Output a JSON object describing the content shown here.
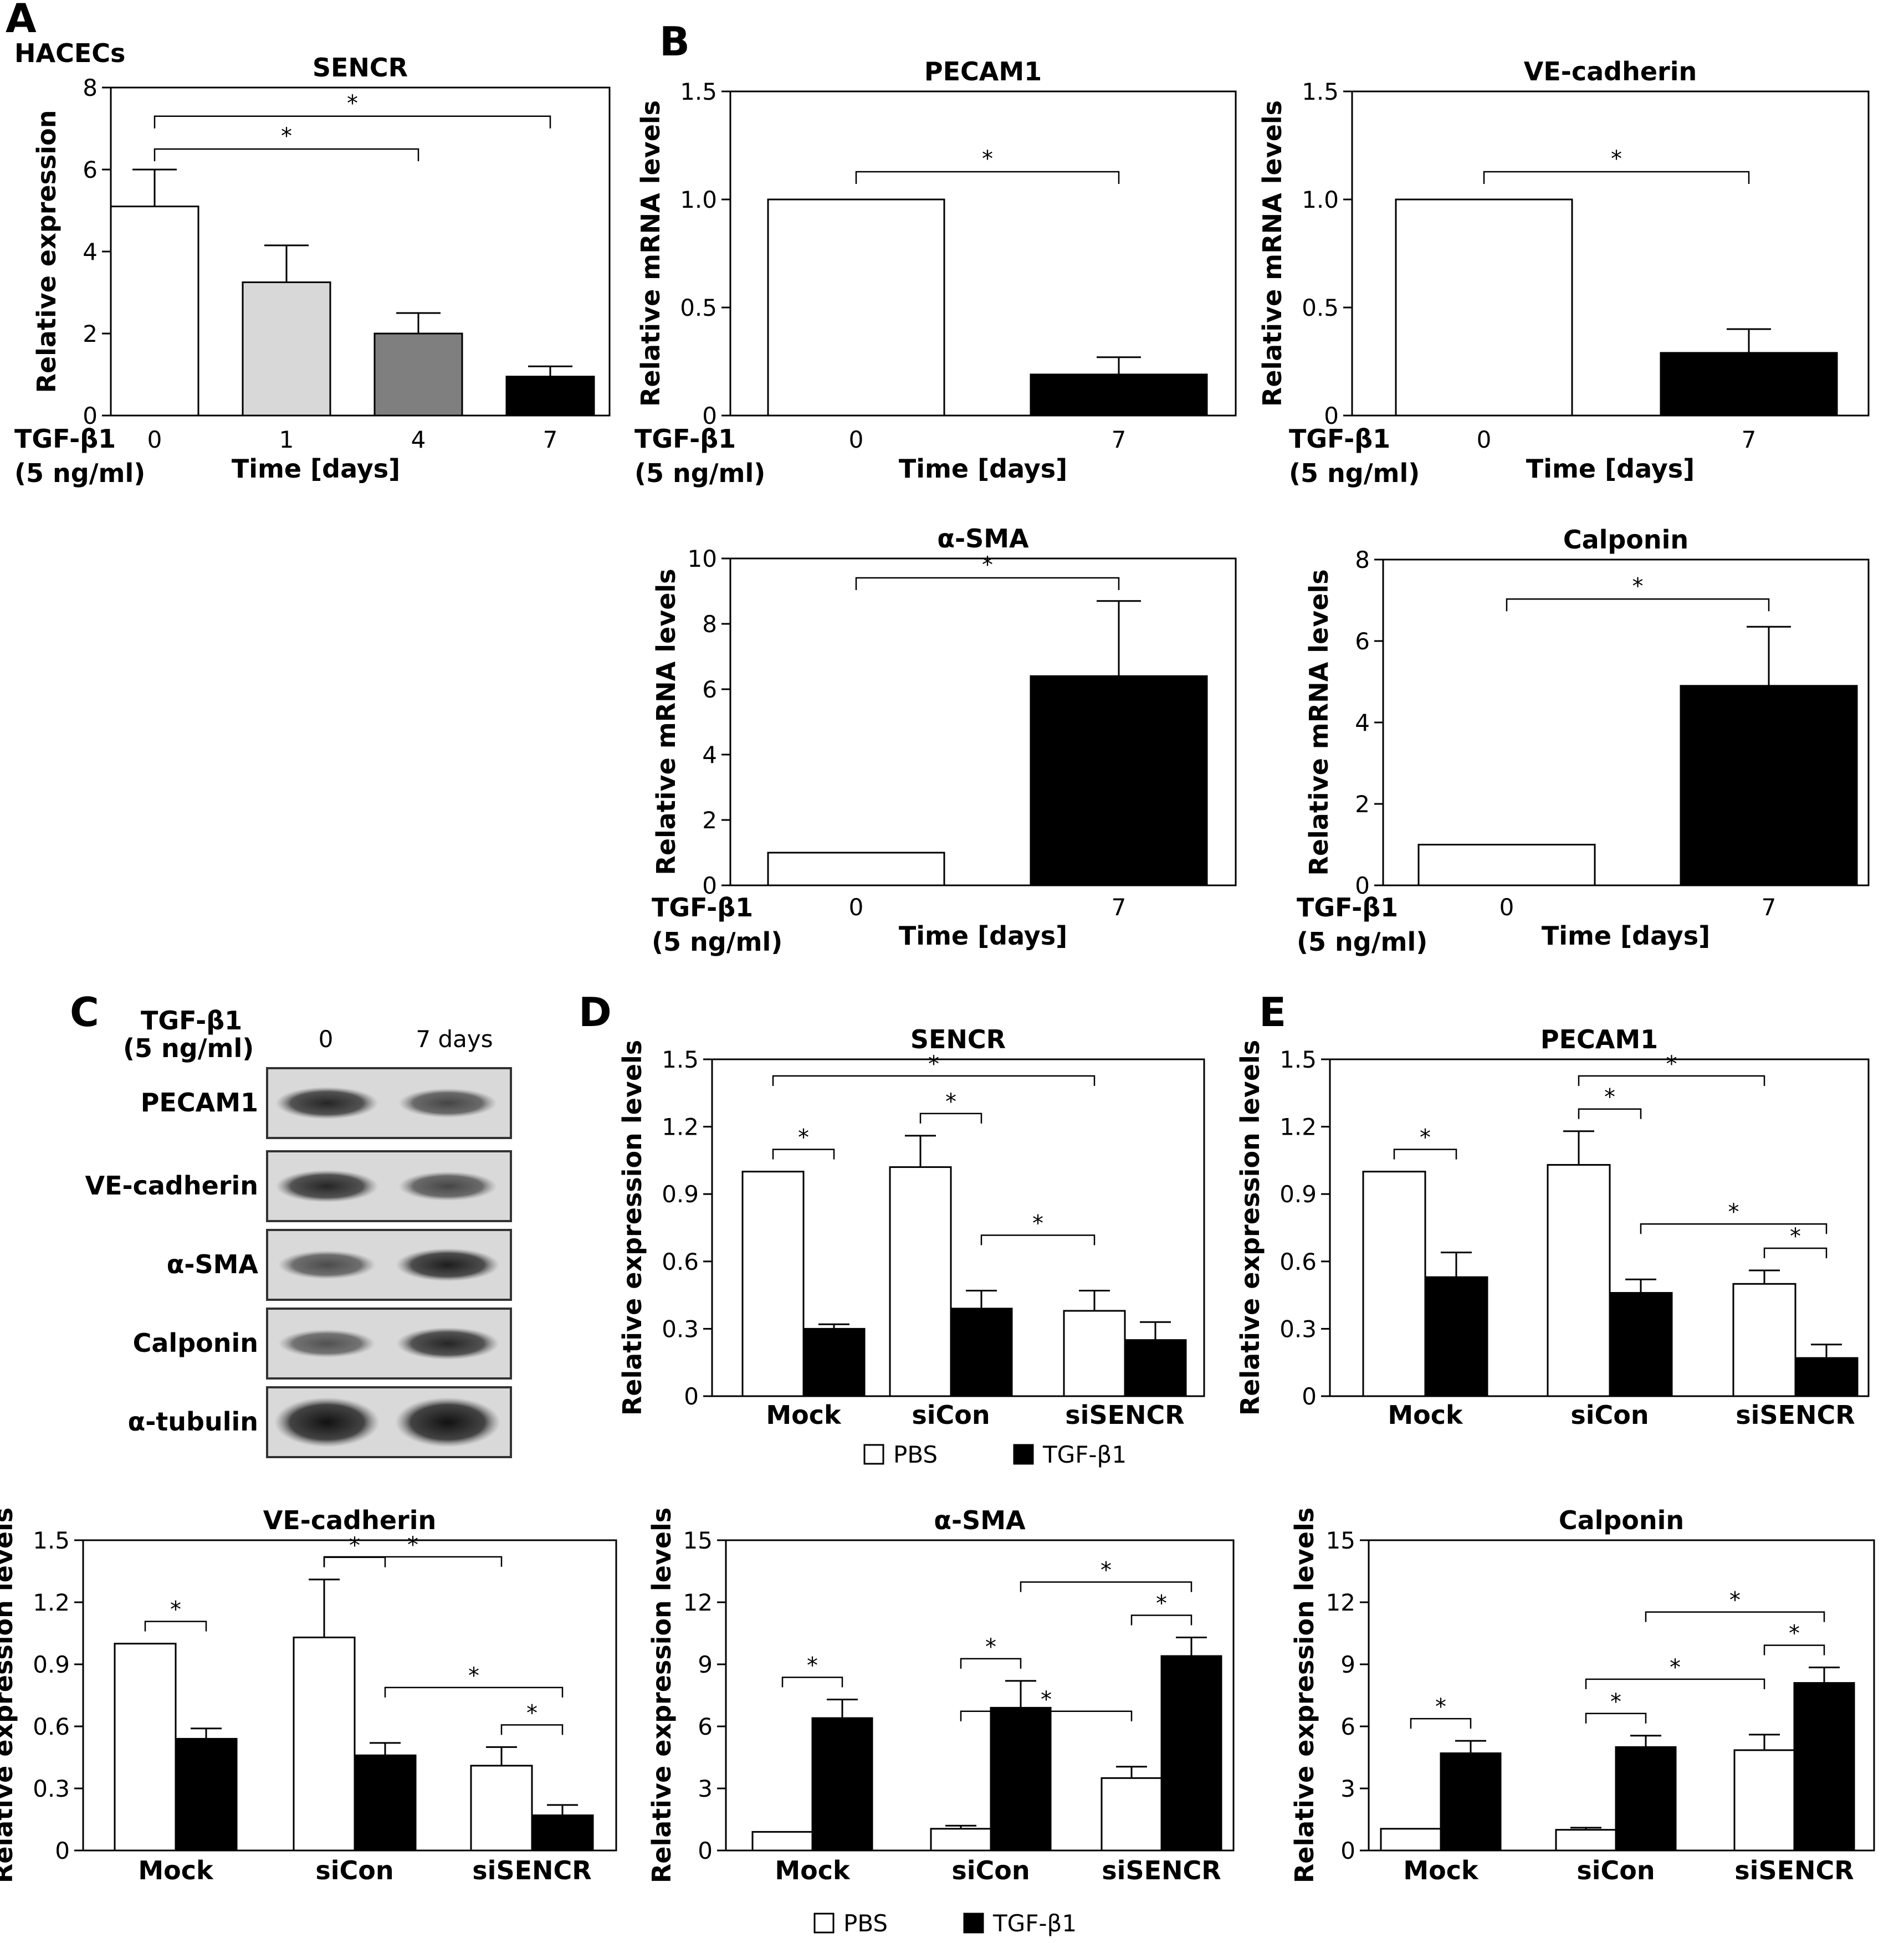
{
  "panels": {
    "A": {
      "letter": "A",
      "cell": "HACECs"
    },
    "B": {
      "letter": "B"
    },
    "C": {
      "letter": "C"
    },
    "D": {
      "letter": "D"
    },
    "E": {
      "letter": "E"
    }
  },
  "treatment_label": [
    "TGF-β1",
    "(5 ng/ml)"
  ],
  "time_label": "Time [days]",
  "legend": {
    "pbs": "PBS",
    "tgf": "TGF-β1"
  },
  "western_blot": {
    "header": [
      "TGF-β1",
      "(5 ng/ml)"
    ],
    "col_labels": [
      "0",
      "7 days"
    ],
    "proteins": [
      "PECAM1",
      "VE-cadherin",
      "α-SMA",
      "Calponin",
      "α-tubulin"
    ],
    "band_intensity": [
      [
        0.85,
        0.6
      ],
      [
        0.85,
        0.6
      ],
      [
        0.55,
        0.9
      ],
      [
        0.5,
        0.85
      ],
      [
        1.0,
        1.0
      ]
    ]
  },
  "chart_data": [
    {
      "id": "A-SENCR",
      "type": "bar",
      "title": "SENCR",
      "ylabel": "Relative expression",
      "xlabel": "Time [days]",
      "categories": [
        "0",
        "1",
        "4",
        "7"
      ],
      "values": [
        5.1,
        3.25,
        2.0,
        0.95
      ],
      "errors": [
        0.9,
        0.9,
        0.5,
        0.25
      ],
      "colors": [
        "#ffffff",
        "#d8d8d8",
        "#7f7f7f",
        "#000000"
      ],
      "ylim": [
        0,
        8
      ],
      "yticks": [
        "0",
        "2",
        "4",
        "6",
        "8"
      ],
      "significance": [
        {
          "from": 0,
          "to": 2,
          "label": "*"
        },
        {
          "from": 0,
          "to": 3,
          "label": "*"
        }
      ]
    },
    {
      "id": "B-PECAM1",
      "type": "bar",
      "title": "PECAM1",
      "ylabel": "Relative mRNA levels",
      "xlabel": "Time [days]",
      "categories": [
        "0",
        "7"
      ],
      "values": [
        1.0,
        0.19
      ],
      "errors": [
        0,
        0.08
      ],
      "colors": [
        "#ffffff",
        "#000000"
      ],
      "ylim": [
        0,
        1.5
      ],
      "yticks": [
        "0",
        "0.5",
        "1.0",
        "1.5"
      ],
      "significance": [
        {
          "from": 0,
          "to": 1,
          "label": "*"
        }
      ]
    },
    {
      "id": "B-VE-cadherin",
      "type": "bar",
      "title": "VE-cadherin",
      "ylabel": "Relative mRNA levels",
      "xlabel": "Time [days]",
      "categories": [
        "0",
        "7"
      ],
      "values": [
        1.0,
        0.29
      ],
      "errors": [
        0,
        0.11
      ],
      "colors": [
        "#ffffff",
        "#000000"
      ],
      "ylim": [
        0,
        1.5
      ],
      "yticks": [
        "0",
        "0.5",
        "1.0",
        "1.5"
      ],
      "significance": [
        {
          "from": 0,
          "to": 1,
          "label": "*"
        }
      ]
    },
    {
      "id": "B-aSMA",
      "type": "bar",
      "title": "α-SMA",
      "ylabel": "Relative mRNA levels",
      "xlabel": "Time [days]",
      "categories": [
        "0",
        "7"
      ],
      "values": [
        1.0,
        6.4
      ],
      "errors": [
        0,
        2.3
      ],
      "colors": [
        "#ffffff",
        "#000000"
      ],
      "ylim": [
        0,
        10
      ],
      "yticks": [
        "0",
        "2",
        "4",
        "6",
        "8",
        "10"
      ],
      "significance": [
        {
          "from": 0,
          "to": 1,
          "label": "*"
        }
      ]
    },
    {
      "id": "B-Calponin",
      "type": "bar",
      "title": "Calponin",
      "ylabel": "Relative mRNA levels",
      "xlabel": "Time [days]",
      "categories": [
        "0",
        "7"
      ],
      "values": [
        1.0,
        4.9
      ],
      "errors": [
        0,
        1.45
      ],
      "colors": [
        "#ffffff",
        "#000000"
      ],
      "ylim": [
        0,
        8
      ],
      "yticks": [
        "0",
        "2",
        "4",
        "6",
        "8"
      ],
      "significance": [
        {
          "from": 0,
          "to": 1,
          "label": "*"
        }
      ]
    },
    {
      "id": "D-SENCR",
      "type": "bar",
      "title": "SENCR",
      "ylabel": "Relative expression levels",
      "categories": [
        "Mock",
        "siCon",
        "siSENCR"
      ],
      "series": [
        {
          "name": "PBS",
          "values": [
            1.0,
            1.02,
            0.38
          ],
          "errors": [
            0,
            0.14,
            0.09
          ]
        },
        {
          "name": "TGF-β1",
          "values": [
            0.3,
            0.39,
            0.25
          ],
          "errors": [
            0.02,
            0.08,
            0.08
          ]
        }
      ],
      "ylim": [
        0,
        1.5
      ],
      "yticks": [
        "0",
        "0.3",
        "0.6",
        "0.9",
        "1.2",
        "1.5"
      ],
      "significance": [
        {
          "from": [
            0,
            0
          ],
          "to": [
            0,
            1
          ],
          "label": "*"
        },
        {
          "from": [
            1,
            0
          ],
          "to": [
            1,
            1
          ],
          "label": "*"
        },
        {
          "from": [
            1,
            1
          ],
          "to": [
            2,
            0
          ],
          "label": "*"
        },
        {
          "from": [
            0,
            0
          ],
          "to": [
            2,
            0
          ],
          "label": "*"
        }
      ]
    },
    {
      "id": "E-PECAM1",
      "type": "bar",
      "title": "PECAM1",
      "ylabel": "Relative expression levels",
      "categories": [
        "Mock",
        "siCon",
        "siSENCR"
      ],
      "series": [
        {
          "name": "PBS",
          "values": [
            1.0,
            1.03,
            0.5
          ],
          "errors": [
            0,
            0.15,
            0.06
          ]
        },
        {
          "name": "TGF-β1",
          "values": [
            0.53,
            0.46,
            0.17
          ],
          "errors": [
            0.11,
            0.06,
            0.06
          ]
        }
      ],
      "ylim": [
        0,
        1.5
      ],
      "yticks": [
        "0",
        "0.3",
        "0.6",
        "0.9",
        "1.2",
        "1.5"
      ],
      "significance": [
        {
          "from": [
            0,
            0
          ],
          "to": [
            0,
            1
          ],
          "label": "*"
        },
        {
          "from": [
            1,
            0
          ],
          "to": [
            1,
            1
          ],
          "label": "*"
        },
        {
          "from": [
            1,
            0
          ],
          "to": [
            2,
            0
          ],
          "label": "*"
        },
        {
          "from": [
            2,
            0
          ],
          "to": [
            2,
            1
          ],
          "label": "*"
        },
        {
          "from": [
            1,
            1
          ],
          "to": [
            2,
            1
          ],
          "label": "*"
        }
      ]
    },
    {
      "id": "E-VE-cadherin",
      "type": "bar",
      "title": "VE-cadherin",
      "ylabel": "Relative expression levels",
      "categories": [
        "Mock",
        "siCon",
        "siSENCR"
      ],
      "series": [
        {
          "name": "PBS",
          "values": [
            1.0,
            1.03,
            0.41
          ],
          "errors": [
            0,
            0.28,
            0.09
          ]
        },
        {
          "name": "TGF-β1",
          "values": [
            0.54,
            0.46,
            0.17
          ],
          "errors": [
            0.05,
            0.06,
            0.05
          ]
        }
      ],
      "ylim": [
        0,
        1.5
      ],
      "yticks": [
        "0",
        "0.3",
        "0.6",
        "0.9",
        "1.2",
        "1.5"
      ],
      "significance": [
        {
          "from": [
            0,
            0
          ],
          "to": [
            0,
            1
          ],
          "label": "*"
        },
        {
          "from": [
            1,
            0
          ],
          "to": [
            1,
            1
          ],
          "label": "*"
        },
        {
          "from": [
            1,
            0
          ],
          "to": [
            2,
            0
          ],
          "label": "*"
        },
        {
          "from": [
            2,
            0
          ],
          "to": [
            2,
            1
          ],
          "label": "*"
        },
        {
          "from": [
            1,
            1
          ],
          "to": [
            2,
            1
          ],
          "label": "*"
        }
      ]
    },
    {
      "id": "E-aSMA",
      "type": "bar",
      "title": "α-SMA",
      "ylabel": "Relative expression levels",
      "categories": [
        "Mock",
        "siCon",
        "siSENCR"
      ],
      "series": [
        {
          "name": "PBS",
          "values": [
            0.9,
            1.05,
            3.5
          ],
          "errors": [
            0,
            0.15,
            0.55
          ]
        },
        {
          "name": "TGF-β1",
          "values": [
            6.4,
            6.9,
            9.4
          ],
          "errors": [
            0.9,
            1.3,
            0.9
          ]
        }
      ],
      "ylim": [
        0,
        15
      ],
      "yticks": [
        "0",
        "3",
        "6",
        "9",
        "12",
        "15"
      ],
      "significance": [
        {
          "from": [
            0,
            0
          ],
          "to": [
            0,
            1
          ],
          "label": "*"
        },
        {
          "from": [
            1,
            0
          ],
          "to": [
            1,
            1
          ],
          "label": "*"
        },
        {
          "from": [
            1,
            0
          ],
          "to": [
            2,
            0
          ],
          "label": "*"
        },
        {
          "from": [
            2,
            0
          ],
          "to": [
            2,
            1
          ],
          "label": "*"
        },
        {
          "from": [
            1,
            1
          ],
          "to": [
            2,
            1
          ],
          "label": "*"
        }
      ]
    },
    {
      "id": "E-Calponin",
      "type": "bar",
      "title": "Calponin",
      "ylabel": "Relative expression levels",
      "categories": [
        "Mock",
        "siCon",
        "siSENCR"
      ],
      "series": [
        {
          "name": "PBS",
          "values": [
            1.05,
            1.0,
            4.85
          ],
          "errors": [
            0,
            0.1,
            0.75
          ]
        },
        {
          "name": "TGF-β1",
          "values": [
            4.7,
            5.0,
            8.1
          ],
          "errors": [
            0.6,
            0.55,
            0.75
          ]
        }
      ],
      "ylim": [
        0,
        15
      ],
      "yticks": [
        "0",
        "3",
        "6",
        "9",
        "12",
        "15"
      ],
      "significance": [
        {
          "from": [
            0,
            0
          ],
          "to": [
            0,
            1
          ],
          "label": "*"
        },
        {
          "from": [
            1,
            0
          ],
          "to": [
            1,
            1
          ],
          "label": "*"
        },
        {
          "from": [
            1,
            0
          ],
          "to": [
            2,
            0
          ],
          "label": "*"
        },
        {
          "from": [
            2,
            0
          ],
          "to": [
            2,
            1
          ],
          "label": "*"
        },
        {
          "from": [
            1,
            1
          ],
          "to": [
            2,
            1
          ],
          "label": "*"
        }
      ]
    }
  ]
}
